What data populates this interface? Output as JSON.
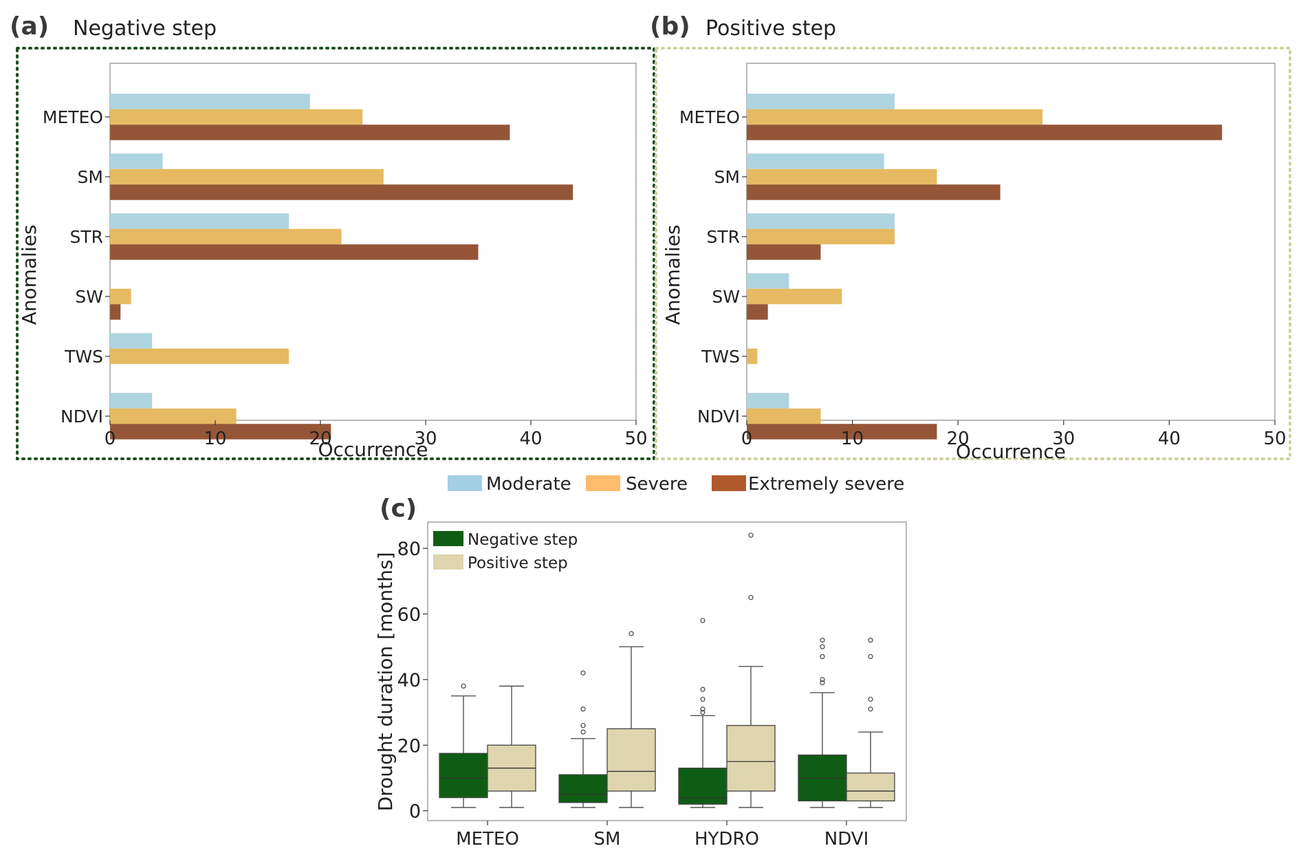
{
  "panels": {
    "a": {
      "letter": "(a)",
      "title": "Negative step"
    },
    "b": {
      "letter": "(b)",
      "title": "Positive step"
    },
    "c": {
      "letter": "(c)"
    }
  },
  "colors": {
    "moderate": "#aed4e0",
    "severe": "#e6ba62",
    "extreme": "#955638",
    "moderate_legend": "#a3cfe5",
    "severe_legend": "#fbbd6c",
    "extreme_legend": "#b05a2c",
    "negative_border": "#1f4d24",
    "positive_border": "#cfd19e",
    "box_negative": "#0f5d14",
    "box_positive": "#dfd5ae"
  },
  "legend": {
    "moderate": "Moderate",
    "severe": "Severe",
    "extreme": "Extremely severe"
  },
  "chart_data": [
    {
      "id": "a",
      "type": "bar",
      "orientation": "horizontal",
      "title": "Negative step",
      "xlabel": "Occurrence",
      "ylabel": "Anomalies",
      "xlim": [
        0,
        50
      ],
      "xticks": [
        0,
        10,
        20,
        30,
        40,
        50
      ],
      "categories": [
        "METEO",
        "SM",
        "STR",
        "SW",
        "TWS",
        "NDVI"
      ],
      "series": [
        {
          "name": "Moderate",
          "values": [
            19,
            5,
            17,
            0,
            4,
            4
          ]
        },
        {
          "name": "Severe",
          "values": [
            24,
            26,
            22,
            2,
            17,
            12
          ]
        },
        {
          "name": "Extremely severe",
          "values": [
            38,
            44,
            35,
            1,
            0,
            21
          ]
        }
      ]
    },
    {
      "id": "b",
      "type": "bar",
      "orientation": "horizontal",
      "title": "Positive step",
      "xlabel": "Occurrence",
      "ylabel": "Anomalies",
      "xlim": [
        0,
        50
      ],
      "xticks": [
        0,
        10,
        20,
        30,
        40,
        50
      ],
      "categories": [
        "METEO",
        "SM",
        "STR",
        "SW",
        "TWS",
        "NDVI"
      ],
      "series": [
        {
          "name": "Moderate",
          "values": [
            14,
            13,
            14,
            4,
            0,
            4
          ]
        },
        {
          "name": "Severe",
          "values": [
            28,
            18,
            14,
            9,
            1,
            7
          ]
        },
        {
          "name": "Extremely severe",
          "values": [
            45,
            24,
            7,
            2,
            0,
            18
          ]
        }
      ]
    },
    {
      "id": "c",
      "type": "box",
      "xlabel": "",
      "ylabel": "Drought duration  [months]",
      "ylim": [
        -3,
        88
      ],
      "yticks": [
        0,
        20,
        40,
        60,
        80
      ],
      "categories": [
        "METEO",
        "SM",
        "HYDRO",
        "NDVI"
      ],
      "legend": [
        "Negative step",
        "Positive step"
      ],
      "series": [
        {
          "name": "Negative step",
          "boxes": [
            {
              "whislo": 1,
              "q1": 4,
              "med": 10,
              "q3": 17.5,
              "whishi": 35,
              "fliers": [
                38
              ]
            },
            {
              "whislo": 1,
              "q1": 2.5,
              "med": 5,
              "q3": 11,
              "whishi": 22,
              "fliers": [
                24,
                26,
                31,
                42
              ]
            },
            {
              "whislo": 1,
              "q1": 2,
              "med": 4,
              "q3": 13,
              "whishi": 29,
              "fliers": [
                30,
                31,
                34,
                37,
                58
              ]
            },
            {
              "whislo": 1,
              "q1": 3,
              "med": 10,
              "q3": 17,
              "whishi": 36,
              "fliers": [
                39,
                40,
                47,
                50,
                52
              ]
            }
          ]
        },
        {
          "name": "Positive step",
          "boxes": [
            {
              "whislo": 1,
              "q1": 6,
              "med": 13,
              "q3": 20,
              "whishi": 38,
              "fliers": []
            },
            {
              "whislo": 1,
              "q1": 6,
              "med": 12,
              "q3": 25,
              "whishi": 50,
              "fliers": [
                54
              ]
            },
            {
              "whislo": 1,
              "q1": 6,
              "med": 15,
              "q3": 26,
              "whishi": 44,
              "fliers": [
                65,
                84
              ]
            },
            {
              "whislo": 1,
              "q1": 3,
              "med": 6,
              "q3": 11.5,
              "whishi": 24,
              "fliers": [
                31,
                34,
                47,
                52
              ]
            }
          ]
        }
      ]
    }
  ]
}
